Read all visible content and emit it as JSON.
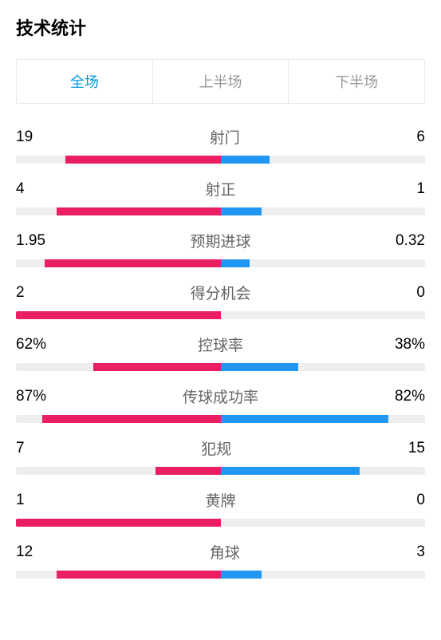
{
  "title": "技术统计",
  "tabs": [
    {
      "label": "全场",
      "active": true
    },
    {
      "label": "上半场",
      "active": false
    },
    {
      "label": "下半场",
      "active": false
    }
  ],
  "colors": {
    "home": "#e91e63",
    "away": "#2196f3",
    "track": "#eeeeee",
    "active_tab": "#0099d9",
    "inactive_tab": "#999999",
    "label": "#666666",
    "value": "#000000"
  },
  "stats": [
    {
      "label": "射门",
      "home_value": "19",
      "away_value": "6",
      "home_pct": 76,
      "away_pct": 24
    },
    {
      "label": "射正",
      "home_value": "4",
      "away_value": "1",
      "home_pct": 80,
      "away_pct": 20
    },
    {
      "label": "预期进球",
      "home_value": "1.95",
      "away_value": "0.32",
      "home_pct": 85.9,
      "away_pct": 14.1
    },
    {
      "label": "得分机会",
      "home_value": "2",
      "away_value": "0",
      "home_pct": 100,
      "away_pct": 0
    },
    {
      "label": "控球率",
      "home_value": "62%",
      "away_value": "38%",
      "home_pct": 62,
      "away_pct": 38
    },
    {
      "label": "传球成功率",
      "home_value": "87%",
      "away_value": "82%",
      "home_pct": 87,
      "away_pct": 82
    },
    {
      "label": "犯规",
      "home_value": "7",
      "away_value": "15",
      "home_pct": 31.8,
      "away_pct": 68.2
    },
    {
      "label": "黄牌",
      "home_value": "1",
      "away_value": "0",
      "home_pct": 100,
      "away_pct": 0
    },
    {
      "label": "角球",
      "home_value": "12",
      "away_value": "3",
      "home_pct": 80,
      "away_pct": 20
    }
  ]
}
